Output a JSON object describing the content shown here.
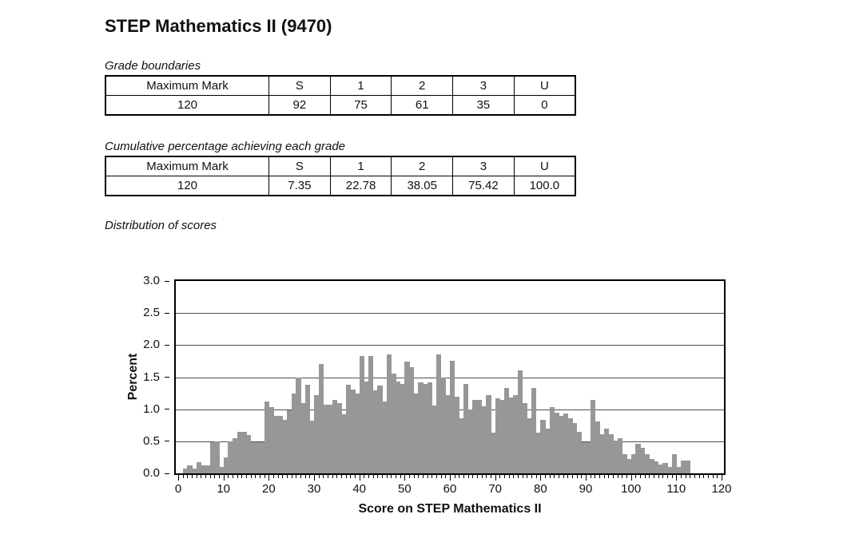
{
  "page": {
    "title": "STEP Mathematics II (9470)",
    "section_grade_boundaries": "Grade boundaries",
    "section_cumulative": "Cumulative percentage achieving each grade",
    "section_distribution": "Distribution of scores"
  },
  "tables": {
    "grade_boundaries": {
      "header": [
        "Maximum Mark",
        "S",
        "1",
        "2",
        "3",
        "U"
      ],
      "rows": [
        [
          "120",
          "92",
          "75",
          "61",
          "35",
          "0"
        ]
      ]
    },
    "cumulative_percentage": {
      "header": [
        "Maximum Mark",
        "S",
        "1",
        "2",
        "3",
        "U"
      ],
      "rows": [
        [
          "120",
          "7.35",
          "22.78",
          "38.05",
          "75.42",
          "100.0"
        ]
      ]
    }
  },
  "chart_data": {
    "type": "bar",
    "subtype": "histogram",
    "title": "Distribution of scores",
    "xlabel": "Score on STEP Mathematics II",
    "ylabel": "Percent",
    "xlim": [
      0,
      120
    ],
    "ylim": [
      0.0,
      3.0
    ],
    "x_major_tick_step": 10,
    "x_minor_tick_step": 1,
    "y_tick_step": 0.5,
    "x_tick_labels": [
      "0",
      "10",
      "20",
      "30",
      "40",
      "50",
      "60",
      "70",
      "80",
      "90",
      "100",
      "110",
      "120"
    ],
    "y_tick_labels": [
      "0.0",
      "0.5",
      "1.0",
      "1.5",
      "2.0",
      "2.5",
      "3.0"
    ],
    "grid": "horizontal",
    "legend": "none",
    "bar_color": "#979797",
    "bin_width": 1,
    "x_first": 1,
    "x": [
      1,
      2,
      3,
      4,
      5,
      6,
      7,
      8,
      9,
      10,
      11,
      12,
      13,
      14,
      15,
      16,
      17,
      18,
      19,
      20,
      21,
      22,
      23,
      24,
      25,
      26,
      27,
      28,
      29,
      30,
      31,
      32,
      33,
      34,
      35,
      36,
      37,
      38,
      39,
      40,
      41,
      42,
      43,
      44,
      45,
      46,
      47,
      48,
      49,
      50,
      51,
      52,
      53,
      54,
      55,
      56,
      57,
      58,
      59,
      60,
      61,
      62,
      63,
      64,
      65,
      66,
      67,
      68,
      69,
      70,
      71,
      72,
      73,
      74,
      75,
      76,
      77,
      78,
      79,
      80,
      81,
      82,
      83,
      84,
      85,
      86,
      87,
      88,
      89,
      90,
      91,
      92,
      93,
      94,
      95,
      96,
      97,
      98,
      99,
      100,
      101,
      102,
      103,
      104,
      105,
      106,
      107,
      108,
      109,
      110,
      111,
      112
    ],
    "values": [
      0.08,
      0.13,
      0.08,
      0.18,
      0.13,
      0.13,
      0.48,
      0.5,
      0.1,
      0.25,
      0.5,
      0.55,
      0.65,
      0.65,
      0.6,
      0.48,
      0.48,
      0.48,
      1.12,
      1.03,
      0.9,
      0.9,
      0.84,
      0.98,
      1.25,
      1.5,
      1.1,
      1.38,
      0.82,
      1.22,
      1.71,
      1.07,
      1.07,
      1.14,
      1.09,
      0.92,
      1.38,
      1.31,
      1.24,
      1.83,
      1.43,
      1.83,
      1.3,
      1.37,
      1.12,
      1.85,
      1.55,
      1.43,
      1.4,
      1.74,
      1.66,
      1.25,
      1.42,
      1.4,
      1.42,
      1.06,
      1.85,
      1.5,
      1.22,
      1.75,
      1.2,
      0.86,
      1.39,
      1.0,
      1.14,
      1.14,
      1.05,
      1.22,
      0.63,
      1.17,
      1.15,
      1.33,
      1.18,
      1.22,
      1.6,
      1.09,
      0.86,
      1.33,
      0.63,
      0.83,
      0.7,
      1.03,
      0.95,
      0.9,
      0.93,
      0.86,
      0.78,
      0.65,
      0.49,
      0.49,
      1.14,
      0.81,
      0.61,
      0.7,
      0.61,
      0.51,
      0.55,
      0.3,
      0.22,
      0.3,
      0.46,
      0.4,
      0.3,
      0.22,
      0.19,
      0.14,
      0.16,
      0.1,
      0.3,
      0.1,
      0.2,
      0.2
    ]
  }
}
